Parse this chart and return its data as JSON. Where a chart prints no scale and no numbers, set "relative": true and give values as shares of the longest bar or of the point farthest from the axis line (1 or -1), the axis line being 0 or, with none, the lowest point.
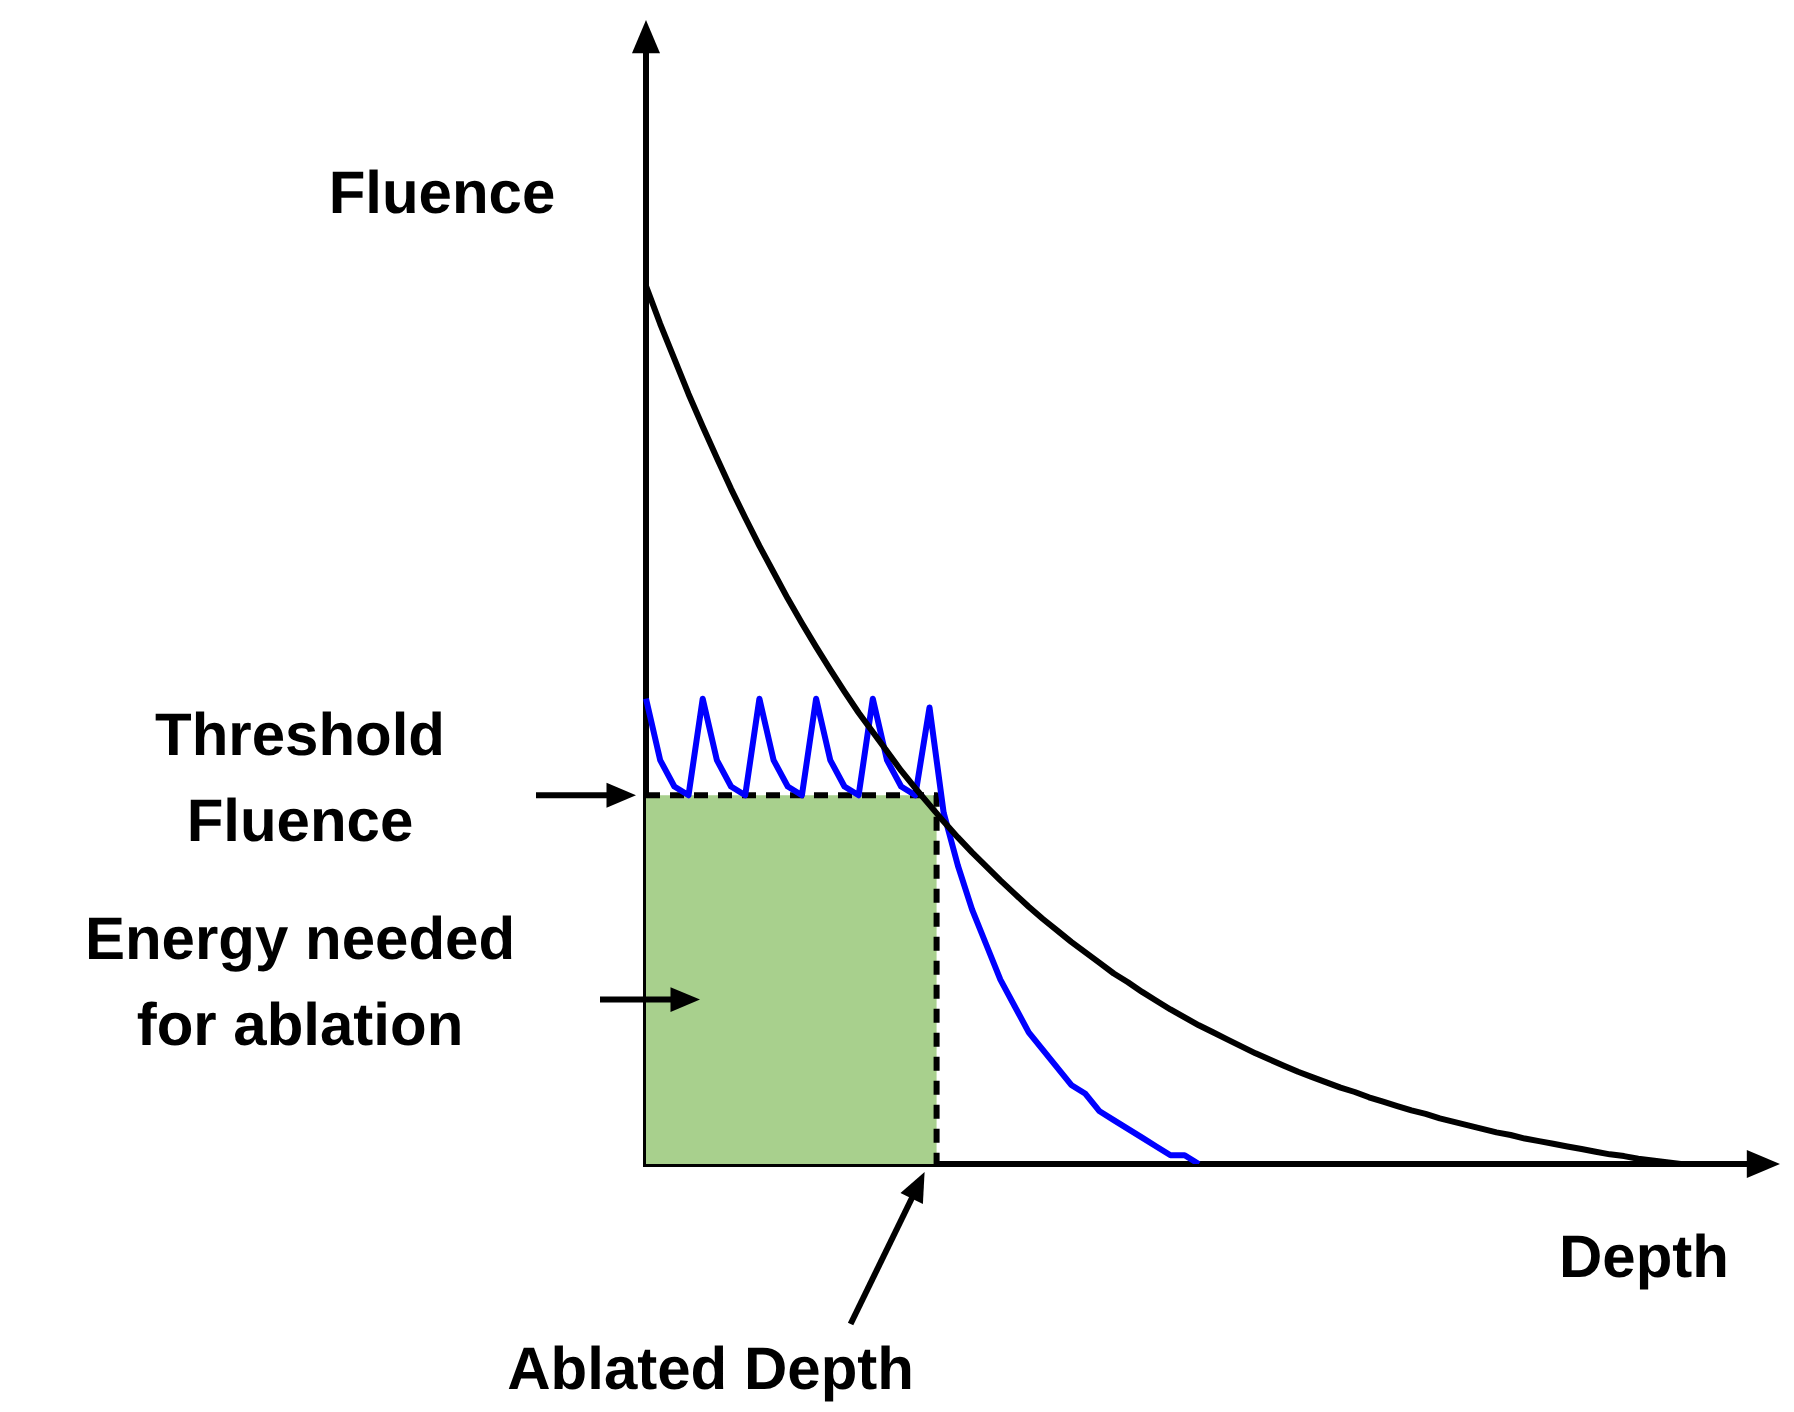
{
  "chart_data": {
    "type": "line",
    "relative": true,
    "xlabel": "Depth",
    "ylabel": "Fluence",
    "marker": "none",
    "legend": false,
    "annotations": [
      "Threshold Fluence",
      "Energy needed for ablation",
      "Ablated Depth"
    ],
    "categories": [
      null,
      null,
      null,
      null,
      null,
      null,
      null,
      null,
      null,
      null,
      null,
      null,
      null,
      null,
      null,
      null,
      null,
      null,
      null,
      null,
      null,
      null,
      null,
      null,
      null,
      null,
      null,
      null,
      null,
      null,
      null,
      null,
      null,
      null,
      null,
      null,
      null,
      null,
      null,
      null,
      null,
      null,
      null,
      null,
      null,
      null,
      null,
      null,
      null,
      null,
      null,
      null,
      null,
      null,
      null,
      null,
      null,
      null,
      null,
      null,
      null,
      null,
      null,
      null,
      null,
      null,
      null,
      null,
      null,
      null,
      null,
      null,
      null,
      null,
      null,
      null,
      null,
      null,
      null,
      null,
      null
    ],
    "series": [
      {
        "type": "line",
        "color": "#000000",
        "values": [
          1,
          0.957,
          0.917,
          0.877,
          0.84,
          0.804,
          0.769,
          0.736,
          0.704,
          0.674,
          0.644,
          0.616,
          0.589,
          0.563,
          0.538,
          0.514,
          0.492,
          0.47,
          0.448,
          0.428,
          0.409,
          0.39,
          0.372,
          0.355,
          0.339,
          0.323,
          0.308,
          0.293,
          0.279,
          0.266,
          0.253,
          0.241,
          0.229,
          0.217,
          0.207,
          0.196,
          0.186,
          0.176,
          0.167,
          0.158,
          0.15,
          0.142,
          0.134,
          0.126,
          0.119,
          0.112,
          0.105,
          0.099,
          0.093,
          0.087,
          0.082,
          0.076,
          0.071,
          0.066,
          0.061,
          0.057,
          0.052,
          0.048,
          0.044,
          0.04,
          0.036,
          0.033,
          0.029,
          0.026,
          0.023,
          0.02,
          0.017,
          0.014,
          0.011,
          0.009,
          0.006,
          0.004,
          0.002,
          0,
          null,
          null,
          null,
          null,
          null,
          null,
          null
        ]
      },
      {
        "type": "line",
        "color": "#0000ff",
        "values": [
          0.53,
          0.46,
          0.43,
          0.42,
          0.53,
          0.46,
          0.43,
          0.42,
          0.53,
          0.46,
          0.43,
          0.42,
          0.53,
          0.46,
          0.43,
          0.42,
          0.53,
          0.46,
          0.43,
          0.42,
          0.52,
          0.4,
          0.34,
          0.29,
          0.25,
          0.21,
          0.18,
          0.15,
          0.13,
          0.11,
          0.09,
          0.08,
          0.06,
          0.05,
          0.04,
          0.03,
          0.02,
          0.01,
          0.01,
          0,
          null,
          null,
          null,
          null,
          null,
          null,
          null,
          null,
          null,
          null,
          null,
          null,
          null,
          null,
          null,
          null,
          null,
          null,
          null,
          null,
          null,
          null,
          null,
          null,
          null,
          null,
          null,
          null,
          null,
          null,
          null,
          null,
          null,
          null,
          null,
          null,
          null,
          null,
          null,
          null,
          null
        ]
      },
      {
        "type": "area",
        "color": "#a8d08d",
        "line_style": "dashed",
        "values": [
          0.42,
          0.42,
          0.42,
          0.42,
          0.42,
          0.42,
          0.42,
          0.42,
          0.42,
          0.42,
          0.42,
          0.42,
          0.42,
          0.42,
          0.42,
          0.42,
          0.42,
          0.42,
          0.42,
          0.42,
          0.42,
          0,
          null,
          null,
          null,
          null,
          null,
          null,
          null,
          null,
          null,
          null,
          null,
          null,
          null,
          null,
          null,
          null,
          null,
          null,
          null,
          null,
          null,
          null,
          null,
          null,
          null,
          null,
          null,
          null,
          null,
          null,
          null,
          null,
          null,
          null,
          null,
          null,
          null,
          null,
          null,
          null,
          null,
          null,
          null,
          null,
          null,
          null,
          null,
          null,
          null,
          null,
          null,
          null,
          null,
          null,
          null,
          null,
          null,
          null,
          null
        ]
      }
    ]
  }
}
